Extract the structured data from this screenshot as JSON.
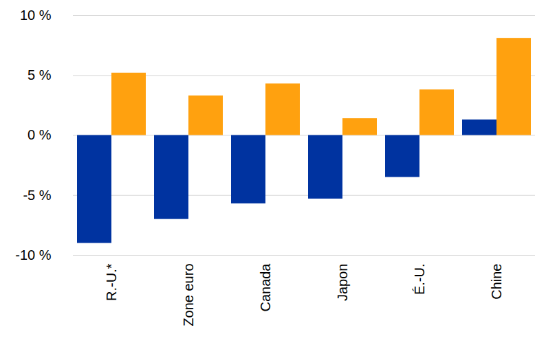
{
  "chart_data": {
    "type": "bar",
    "categories": [
      "R.-U.*",
      "Zone euro",
      "Canada",
      "Japon",
      "É.-U.",
      "Chine"
    ],
    "series": [
      {
        "color": "#0033a0",
        "values": [
          -9.0,
          -7.0,
          -5.7,
          -5.3,
          -3.5,
          1.3
        ]
      },
      {
        "color": "#ffa10f",
        "values": [
          5.2,
          3.3,
          4.3,
          1.4,
          3.8,
          8.1
        ]
      }
    ],
    "ylim": [
      -10,
      10
    ],
    "yticks": [
      {
        "value": -10,
        "label": "-10 %"
      },
      {
        "value": -5,
        "label": "-5 %"
      },
      {
        "value": 0,
        "label": "0 %"
      },
      {
        "value": 5,
        "label": "5 %"
      },
      {
        "value": 10,
        "label": "10 %"
      }
    ],
    "grid": true
  }
}
